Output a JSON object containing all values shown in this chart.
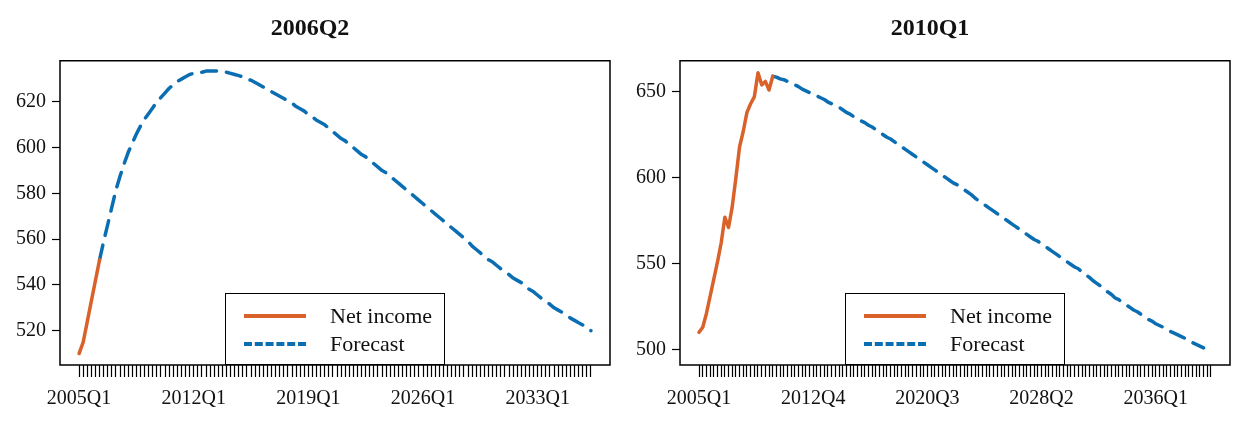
{
  "chart_data": [
    {
      "type": "line",
      "title": "2006Q2",
      "legend": "bottom",
      "marker": "none",
      "grid": false,
      "ylim": [
        505,
        638
      ],
      "yticks": [
        520,
        540,
        560,
        580,
        600,
        620
      ],
      "categories": [
        "2005Q1",
        null,
        null,
        null,
        null,
        null,
        null,
        null,
        null,
        null,
        null,
        null,
        null,
        null,
        null,
        null,
        null,
        null,
        null,
        null,
        null,
        null,
        null,
        null,
        null,
        null,
        null,
        null,
        "2012Q1",
        null,
        null,
        null,
        null,
        null,
        null,
        null,
        null,
        null,
        null,
        null,
        null,
        null,
        null,
        null,
        null,
        null,
        null,
        null,
        null,
        null,
        null,
        null,
        null,
        null,
        null,
        null,
        "2019Q1",
        null,
        null,
        null,
        null,
        null,
        null,
        null,
        null,
        null,
        null,
        null,
        null,
        null,
        null,
        null,
        null,
        null,
        null,
        null,
        null,
        null,
        null,
        null,
        null,
        null,
        null,
        null,
        "2026Q1",
        null,
        null,
        null,
        null,
        null,
        null,
        null,
        null,
        null,
        null,
        null,
        null,
        null,
        null,
        null,
        null,
        null,
        null,
        null,
        null,
        null,
        null,
        null,
        null,
        null,
        null,
        null,
        "2033Q1",
        null,
        null,
        null,
        null,
        null,
        null,
        null,
        null,
        null,
        null,
        null,
        null,
        null
      ],
      "series": [
        {
          "name": "Net income",
          "color": "#d9622b",
          "line_style": "solid",
          "values": [
            510,
            515,
            524,
            533,
            542,
            551,
            null,
            null,
            null,
            null,
            null,
            null,
            null,
            null,
            null,
            null,
            null,
            null,
            null,
            null,
            null,
            null,
            null,
            null,
            null,
            null,
            null,
            null,
            null,
            null,
            null,
            null,
            null,
            null,
            null,
            null,
            null,
            null,
            null,
            null,
            null,
            null,
            null,
            null,
            null,
            null,
            null,
            null,
            null,
            null,
            null,
            null,
            null,
            null,
            null,
            null,
            null,
            null,
            null,
            null,
            null,
            null,
            null,
            null,
            null,
            null,
            null,
            null,
            null,
            null,
            null,
            null,
            null,
            null,
            null,
            null,
            null,
            null,
            null,
            null,
            null,
            null,
            null,
            null,
            null,
            null,
            null,
            null,
            null,
            null,
            null,
            null,
            null,
            null,
            null,
            null,
            null,
            null,
            null,
            null,
            null,
            null,
            null,
            null,
            null,
            null,
            null,
            null,
            null,
            null,
            null,
            null,
            null,
            null,
            null,
            null,
            null,
            null,
            null,
            null,
            null,
            null,
            null,
            null,
            null,
            null
          ]
        },
        {
          "name": "Forecast",
          "color": "#0b6eb3",
          "line_style": "dashed",
          "values": [
            null,
            null,
            null,
            null,
            null,
            551,
            559,
            566.5,
            574,
            581.5,
            587.5,
            593,
            598,
            602,
            606,
            609.5,
            612.5,
            615,
            617.5,
            620,
            622,
            624,
            626,
            627.5,
            629,
            630,
            631,
            632,
            632.5,
            633,
            633,
            633.5,
            633.5,
            633.5,
            633.5,
            633,
            633,
            632.5,
            632,
            631.5,
            631,
            630,
            629.5,
            628.5,
            627.5,
            626.5,
            625.5,
            624.5,
            623.5,
            622.5,
            621.5,
            620.5,
            619.5,
            618,
            617,
            616,
            614.5,
            613.5,
            612,
            611,
            610,
            608.5,
            607,
            605.5,
            604,
            603,
            601.5,
            600,
            598.5,
            597,
            596,
            594.5,
            593,
            591.5,
            590,
            589,
            587.5,
            586,
            584.5,
            583,
            581.5,
            580,
            578.5,
            577,
            575.5,
            574,
            572.5,
            571,
            569.5,
            568,
            566.5,
            565,
            563.5,
            562,
            560.5,
            559,
            557,
            555.5,
            554,
            552.5,
            551,
            550,
            548.5,
            547,
            546,
            544.5,
            543,
            542,
            541,
            539.5,
            538,
            537,
            535.5,
            534,
            533,
            531.5,
            530,
            529,
            528,
            527,
            525.5,
            524.5,
            523.5,
            522.5,
            521,
            520
          ]
        }
      ]
    },
    {
      "type": "line",
      "title": "2010Q1",
      "legend": "bottom",
      "marker": "none",
      "grid": false,
      "ylim": [
        491,
        668
      ],
      "yticks": [
        500,
        550,
        600,
        650
      ],
      "categories": [
        "2005Q1",
        null,
        null,
        null,
        null,
        null,
        null,
        null,
        null,
        null,
        null,
        null,
        null,
        null,
        null,
        null,
        null,
        null,
        null,
        null,
        null,
        null,
        null,
        null,
        null,
        null,
        null,
        null,
        null,
        null,
        null,
        "2012Q4",
        null,
        null,
        null,
        null,
        null,
        null,
        null,
        null,
        null,
        null,
        null,
        null,
        null,
        null,
        null,
        null,
        null,
        null,
        null,
        null,
        null,
        null,
        null,
        null,
        null,
        null,
        null,
        null,
        null,
        null,
        "2020Q3",
        null,
        null,
        null,
        null,
        null,
        null,
        null,
        null,
        null,
        null,
        null,
        null,
        null,
        null,
        null,
        null,
        null,
        null,
        null,
        null,
        null,
        null,
        null,
        null,
        null,
        null,
        null,
        null,
        null,
        null,
        "2028Q2",
        null,
        null,
        null,
        null,
        null,
        null,
        null,
        null,
        null,
        null,
        null,
        null,
        null,
        null,
        null,
        null,
        null,
        null,
        null,
        null,
        null,
        null,
        null,
        null,
        null,
        null,
        null,
        null,
        null,
        null,
        "2036Q1",
        null,
        null,
        null,
        null,
        null,
        null,
        null,
        null,
        null,
        null,
        null,
        null,
        null,
        null,
        null
      ],
      "series": [
        {
          "name": "Net income",
          "color": "#d9622b",
          "line_style": "solid",
          "values": [
            510,
            513,
            521,
            531,
            541,
            551,
            562,
            577,
            571,
            583,
            600,
            618,
            627,
            638,
            643,
            647,
            661,
            654,
            656,
            651,
            659,
            null,
            null,
            null,
            null,
            null,
            null,
            null,
            null,
            null,
            null,
            null,
            null,
            null,
            null,
            null,
            null,
            null,
            null,
            null,
            null,
            null,
            null,
            null,
            null,
            null,
            null,
            null,
            null,
            null,
            null,
            null,
            null,
            null,
            null,
            null,
            null,
            null,
            null,
            null,
            null,
            null,
            null,
            null,
            null,
            null,
            null,
            null,
            null,
            null,
            null,
            null,
            null,
            null,
            null,
            null,
            null,
            null,
            null,
            null,
            null,
            null,
            null,
            null,
            null,
            null,
            null,
            null,
            null,
            null,
            null,
            null,
            null,
            null,
            null,
            null,
            null,
            null,
            null,
            null,
            null,
            null,
            null,
            null,
            null,
            null,
            null,
            null,
            null,
            null,
            null,
            null,
            null,
            null,
            null,
            null,
            null,
            null,
            null,
            null,
            null,
            null,
            null,
            null,
            null,
            null,
            null,
            null,
            null,
            null,
            null,
            null,
            null,
            null,
            null,
            null,
            null,
            null,
            null,
            null
          ]
        },
        {
          "name": "Forecast",
          "color": "#0b6eb3",
          "line_style": "dashed",
          "values": [
            null,
            null,
            null,
            null,
            null,
            null,
            null,
            null,
            null,
            null,
            null,
            null,
            null,
            null,
            null,
            null,
            null,
            null,
            null,
            null,
            659,
            658.5,
            657.5,
            657,
            656,
            655,
            654,
            653,
            651.5,
            650.5,
            649.5,
            648.5,
            647.5,
            646.5,
            645.5,
            644,
            643,
            642,
            641,
            639.5,
            638,
            637,
            635.5,
            634.5,
            633,
            632,
            630.5,
            629.5,
            628,
            626.5,
            625,
            623.5,
            622.5,
            621,
            619.5,
            618,
            616.5,
            615,
            613.5,
            612,
            610.5,
            609,
            607.5,
            606,
            604.5,
            603,
            601.5,
            600,
            598.5,
            597,
            596,
            594.5,
            593,
            591.5,
            590,
            588,
            586.5,
            585,
            583.5,
            582,
            580.5,
            579,
            577.5,
            576,
            574.5,
            573,
            571.5,
            570,
            568.5,
            567,
            565.5,
            564,
            563,
            561.5,
            560,
            558.5,
            557,
            555.5,
            554,
            552.5,
            551,
            549.5,
            548,
            547,
            545,
            543.5,
            542,
            540,
            538.5,
            537,
            535,
            533.5,
            532,
            530,
            529,
            527.5,
            526,
            524.5,
            523,
            522,
            520.5,
            519,
            517.5,
            516.5,
            515,
            514,
            513,
            512,
            510.5,
            509.5,
            508.5,
            507.5,
            506.5,
            505.5,
            504,
            503,
            502,
            501,
            null,
            null
          ]
        }
      ]
    }
  ]
}
